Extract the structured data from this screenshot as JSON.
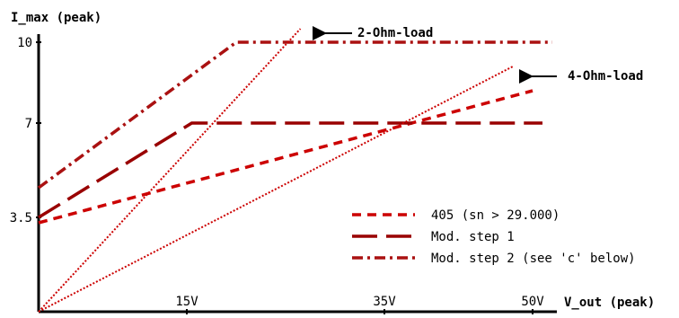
{
  "chart_data": {
    "type": "line",
    "title": "",
    "ylabel": "I_max (peak)",
    "xlabel": "V_out (peak)",
    "xlim": [
      0,
      60
    ],
    "ylim": [
      0,
      11
    ],
    "grid": false,
    "legend_position": "bottom-right",
    "x_ticks": [
      {
        "value": 15,
        "label": "15V"
      },
      {
        "value": 35,
        "label": "35V"
      },
      {
        "value": 50,
        "label": "50V"
      }
    ],
    "y_ticks": [
      {
        "value": 3.5,
        "label": "3.5"
      },
      {
        "value": 7,
        "label": "7"
      },
      {
        "value": 10,
        "label": "10"
      }
    ],
    "series": [
      {
        "name": "405 (sn > 29.000)",
        "style": "short-dash",
        "color": "#cc0000",
        "points": [
          [
            0,
            3.3
          ],
          [
            50,
            8.2
          ]
        ]
      },
      {
        "name": "Mod. step 1",
        "style": "long-dash",
        "color": "#990000",
        "points": [
          [
            0,
            3.5
          ],
          [
            15.5,
            7.0
          ],
          [
            51,
            7.0
          ]
        ]
      },
      {
        "name": "Mod. step 2 (see 'c' below)",
        "style": "dash-dot",
        "color": "#aa1111",
        "points": [
          [
            0,
            4.6
          ],
          [
            20,
            10.0
          ],
          [
            52,
            10.0
          ]
        ]
      }
    ],
    "load_lines": [
      {
        "label": "2-Ohm-load",
        "color": "#cc0000",
        "points": [
          [
            0,
            0
          ],
          [
            26.5,
            10.5
          ]
        ]
      },
      {
        "label": "4-Ohm-load",
        "color": "#cc0000",
        "points": [
          [
            0,
            0
          ],
          [
            48,
            9.1
          ]
        ]
      }
    ]
  }
}
